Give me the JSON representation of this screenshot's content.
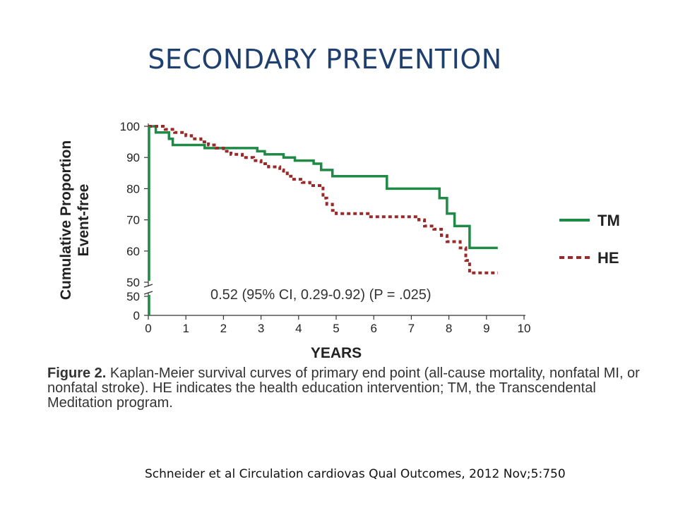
{
  "slide": {
    "title": "SECONDARY PREVENTION",
    "citation": "Schneider et al Circulation cardiovas Qual Outcomes, 2012 Nov;5:750"
  },
  "figure": {
    "caption_lead": "Figure 2.",
    "caption_text": "Kaplan-Meier survival curves of primary end point (all-cause mortality, nonfatal MI, or nonfatal stroke). HE indicates the health education intervention; TM, the Transcendental Meditation program."
  },
  "chart_data": {
    "type": "line",
    "xlabel": "YEARS",
    "ylabel": [
      "Cumulative Proportion",
      "Event-free"
    ],
    "xlim": [
      0,
      10
    ],
    "ylim": [
      50,
      100
    ],
    "xticks": [
      "0",
      "1",
      "2",
      "3",
      "4",
      "5",
      "6",
      "7",
      "8",
      "9",
      "10"
    ],
    "yticks": [
      "50",
      "60",
      "70",
      "80",
      "90",
      "100"
    ],
    "lower_axis_ticks": [
      "0",
      "50"
    ],
    "annotation": "0.52 (95% CI, 0.29-0.92) (P = .025)",
    "legend_position": "right",
    "series": [
      {
        "name": "TM",
        "style": "solid",
        "color": "#1f8a46",
        "points": [
          [
            0,
            100
          ],
          [
            0.2,
            100
          ],
          [
            0.2,
            98
          ],
          [
            0.55,
            98
          ],
          [
            0.55,
            96
          ],
          [
            0.65,
            96
          ],
          [
            0.65,
            94
          ],
          [
            1.5,
            94
          ],
          [
            1.5,
            93
          ],
          [
            2.9,
            93
          ],
          [
            2.9,
            92
          ],
          [
            3.1,
            92
          ],
          [
            3.1,
            91
          ],
          [
            3.6,
            91
          ],
          [
            3.6,
            90
          ],
          [
            3.9,
            90
          ],
          [
            3.9,
            89
          ],
          [
            4.4,
            89
          ],
          [
            4.4,
            88
          ],
          [
            4.6,
            88
          ],
          [
            4.6,
            86
          ],
          [
            4.9,
            86
          ],
          [
            4.9,
            84
          ],
          [
            6.35,
            84
          ],
          [
            6.35,
            80
          ],
          [
            7.75,
            80
          ],
          [
            7.75,
            77
          ],
          [
            7.95,
            77
          ],
          [
            7.95,
            72
          ],
          [
            8.15,
            72
          ],
          [
            8.15,
            68
          ],
          [
            8.55,
            68
          ],
          [
            8.55,
            61
          ],
          [
            9.3,
            61
          ]
        ]
      },
      {
        "name": "HE",
        "style": "dashed",
        "color": "#9a2a2a",
        "points": [
          [
            0,
            100
          ],
          [
            0.45,
            100
          ],
          [
            0.45,
            99
          ],
          [
            0.7,
            99
          ],
          [
            0.7,
            98
          ],
          [
            1.0,
            98
          ],
          [
            1.0,
            97
          ],
          [
            1.15,
            97
          ],
          [
            1.15,
            96
          ],
          [
            1.4,
            96
          ],
          [
            1.4,
            95
          ],
          [
            1.6,
            95
          ],
          [
            1.6,
            94
          ],
          [
            1.8,
            94
          ],
          [
            1.8,
            93
          ],
          [
            2.0,
            93
          ],
          [
            2.0,
            92
          ],
          [
            2.2,
            92
          ],
          [
            2.2,
            91
          ],
          [
            2.5,
            91
          ],
          [
            2.5,
            90
          ],
          [
            2.8,
            90
          ],
          [
            2.8,
            89
          ],
          [
            3.0,
            89
          ],
          [
            3.0,
            88
          ],
          [
            3.2,
            88
          ],
          [
            3.2,
            87
          ],
          [
            3.5,
            87
          ],
          [
            3.5,
            86
          ],
          [
            3.6,
            86
          ],
          [
            3.6,
            85
          ],
          [
            3.7,
            85
          ],
          [
            3.7,
            84
          ],
          [
            3.8,
            84
          ],
          [
            3.8,
            83
          ],
          [
            4.1,
            83
          ],
          [
            4.1,
            82
          ],
          [
            4.3,
            82
          ],
          [
            4.3,
            81
          ],
          [
            4.65,
            81
          ],
          [
            4.65,
            77
          ],
          [
            4.75,
            77
          ],
          [
            4.75,
            75
          ],
          [
            4.9,
            75
          ],
          [
            4.9,
            73
          ],
          [
            5.0,
            73
          ],
          [
            5.0,
            72
          ],
          [
            5.85,
            72
          ],
          [
            5.85,
            71
          ],
          [
            7.2,
            71
          ],
          [
            7.2,
            70
          ],
          [
            7.35,
            70
          ],
          [
            7.35,
            68
          ],
          [
            7.6,
            68
          ],
          [
            7.6,
            67
          ],
          [
            7.8,
            67
          ],
          [
            7.8,
            65
          ],
          [
            7.95,
            65
          ],
          [
            7.95,
            63
          ],
          [
            8.3,
            63
          ],
          [
            8.3,
            61
          ],
          [
            8.45,
            61
          ],
          [
            8.45,
            57
          ],
          [
            8.55,
            57
          ],
          [
            8.55,
            53
          ],
          [
            9.3,
            53
          ]
        ]
      }
    ]
  }
}
